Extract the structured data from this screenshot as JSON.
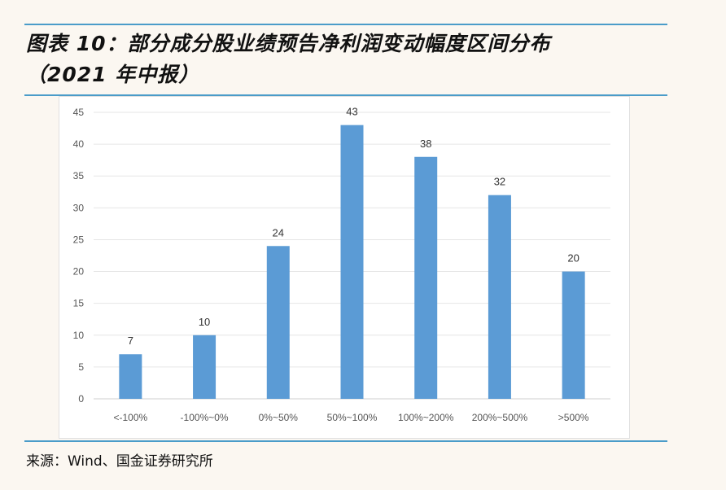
{
  "title_line1": "图表 10：部分成分股业绩预告净利润变动幅度区间分布",
  "title_line2": "（2021 年中报）",
  "source": "来源：Wind、国金证券研究所",
  "colors": {
    "bar": "#5b9bd5",
    "rule": "#4a9cc9"
  },
  "chart_data": {
    "type": "bar",
    "title": "",
    "xlabel": "",
    "ylabel": "",
    "categories": [
      "<-100%",
      "-100%~0%",
      "0%~50%",
      "50%~100%",
      "100%~200%",
      "200%~500%",
      ">500%"
    ],
    "values": [
      7,
      10,
      24,
      43,
      38,
      32,
      20
    ],
    "ylim": [
      0,
      45
    ],
    "yticks": [
      0,
      5,
      10,
      15,
      20,
      25,
      30,
      35,
      40,
      45
    ],
    "grid": true,
    "legend": "none"
  }
}
